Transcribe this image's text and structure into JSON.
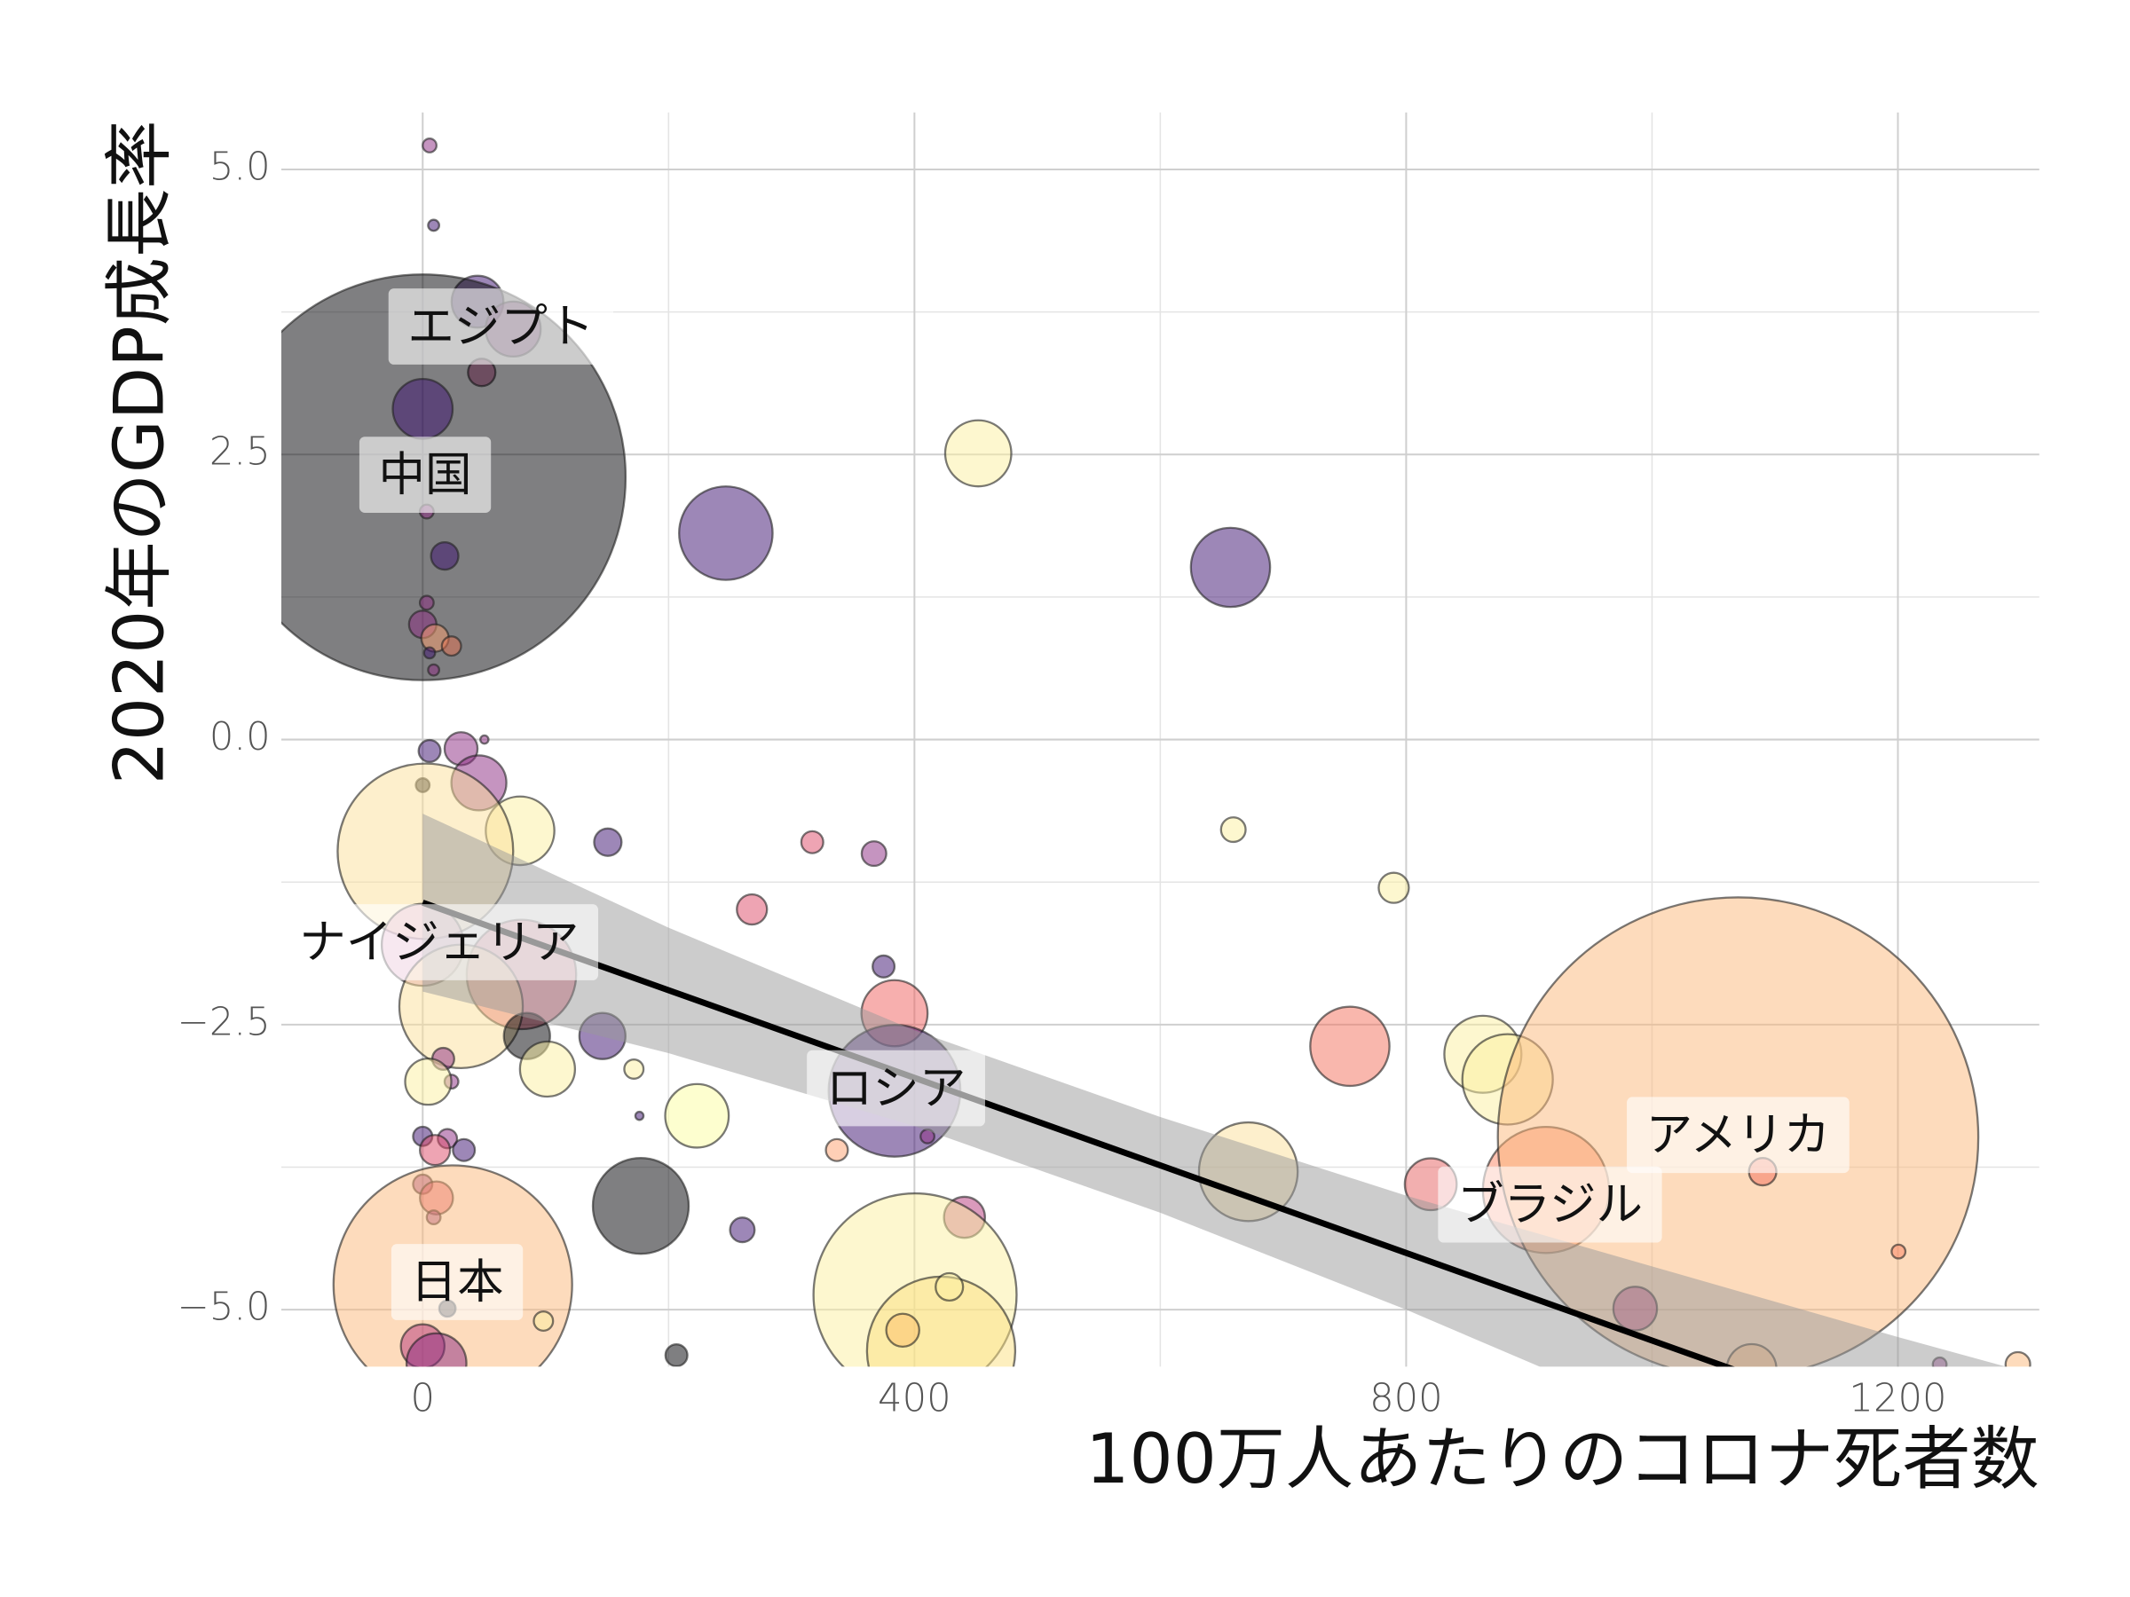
{
  "chart_data": {
    "type": "scatter",
    "xlabel": "100万人あたりのコロナ死者数",
    "ylabel": "2020年のGDP成長率",
    "xlim": [
      -115,
      1315
    ],
    "ylim": [
      -5.5,
      5.5
    ],
    "xticks": [
      0,
      400,
      800,
      1200
    ],
    "yticks": [
      {
        "value": -5,
        "label": "−5.0"
      },
      {
        "value": -2.5,
        "label": "−2.5"
      },
      {
        "value": 0,
        "label": "0.0"
      },
      {
        "value": 2.5,
        "label": "2.5"
      },
      {
        "value": 5,
        "label": "5.0"
      }
    ],
    "minor_xticks": [
      200,
      600,
      1000
    ],
    "minor_yticks": [
      -3.75,
      -1.25,
      1.25,
      3.75
    ],
    "grid": true,
    "alpha": 0.5,
    "x": [
      5.6,
      8.9,
      44.6,
      73.6,
      48,
      0,
      0,
      3.3,
      17.9,
      3.3,
      0,
      10,
      23.4,
      5.6,
      8.9,
      451.9,
      246.6,
      657.1,
      5.6,
      31.2,
      50.2,
      45.7,
      0,
      79.2,
      2.2,
      150.6,
      316.9,
      367.1,
      659.4,
      789.9,
      267.8,
      0,
      80.3,
      31.2,
      374.9,
      383.8,
      84.8,
      146.2,
      16.7,
      23.4,
      4.5,
      101.5,
      171.8,
      383.8,
      754.2,
      862.4,
      882.5,
      223.1,
      176.3,
      0,
      20.1,
      33.5,
      10,
      336.9,
      410.6,
      671.6,
      820,
      913.7,
      1070,
      1090,
      0,
      11.2,
      177.4,
      440.7,
      260,
      8.9,
      24.5,
      1200.5,
      986.3,
      400.5,
      421.7,
      428.4,
      390.5,
      20.1,
      98.2,
      0,
      11.2,
      206.4,
      1081,
      1234,
      1297.6
    ],
    "values": [
      5.21,
      4.51,
      3.84,
      3.6,
      3.22,
      2.3,
      2.9,
      2.0,
      1.61,
      1.2,
      1.01,
      0.89,
      0.82,
      0.76,
      0.61,
      2.51,
      1.81,
      1.51,
      -0.1,
      -0.08,
      0,
      -0.38,
      -0.4,
      -0.8,
      -0.98,
      -0.9,
      -0.9,
      -1.0,
      -0.79,
      -1.3,
      -1.49,
      -1.8,
      -2.06,
      -2.34,
      -1.99,
      -2.4,
      -2.6,
      -2.6,
      -2.8,
      -3.0,
      -3.0,
      -2.89,
      -2.89,
      -3.08,
      -2.69,
      -2.76,
      -2.98,
      -3.3,
      -3.3,
      -3.48,
      -3.5,
      -3.6,
      -3.6,
      -3.6,
      -3.48,
      -3.79,
      -3.9,
      -3.95,
      -3.49,
      -3.79,
      -3.9,
      -4.02,
      -4.09,
      -4.19,
      -4.3,
      -4.19,
      -4.78,
      -4.49,
      -4.99,
      -4.87,
      -5.36,
      -4.8,
      -5.18,
      -4.99,
      -5.1,
      -5.32,
      -5.47,
      -5.4,
      -5.52,
      -5.48,
      -5.48
    ],
    "sizes": [
      0.017,
      0.011,
      0.24,
      0.27,
      0.067,
      14.7,
      0.32,
      0.017,
      0.067,
      0.017,
      0.067,
      0.067,
      0.033,
      0.011,
      0.011,
      0.39,
      0.78,
      0.56,
      0.043,
      0.097,
      0.006,
      0.27,
      0.017,
      0.42,
      2.75,
      0.067,
      0.043,
      0.054,
      0.054,
      0.081,
      0.081,
      0.6,
      1.07,
      1.36,
      0.043,
      0.39,
      0.19,
      0.19,
      0.043,
      0.017,
      0.19,
      0.27,
      0.033,
      1.55,
      0.56,
      0.53,
      0.73,
      0.36,
      0.006,
      0.033,
      0.033,
      0.043,
      0.081,
      0.043,
      0.017,
      0.87,
      0.24,
      1.42,
      20.6,
      0.067,
      0.033,
      0.097,
      0.82,
      0.15,
      0.054,
      0.017,
      5.08,
      0.017,
      0.17,
      3.68,
      1.96,
      0.067,
      0.097,
      0.024,
      0.033,
      0.17,
      0.32,
      0.043,
      0.22,
      0.017,
      0.054
    ],
    "colors": [
      "#8c2981",
      "#3b0f70",
      "#3b0f70",
      "#8c2981",
      "#b5367a",
      "#000004",
      "#3b0f70",
      "#8c2981",
      "#3b0f70",
      "#8c2981",
      "#8c2981",
      "#fe9f6d",
      "#e8714f",
      "#3b0f70",
      "#8c2981",
      "#fcefa0",
      "#3b0f70",
      "#3b0f70",
      "#3b0f70",
      "#8c2981",
      "#8c2981",
      "#8c2981",
      "#000004",
      "#fcefa0",
      "#fcdf9a",
      "#3b0f70",
      "#de4968",
      "#8c2981",
      "#fcefa0",
      "#fcefa0",
      "#de4968",
      "#d58bb5",
      "#de4968",
      "#fcdf9a",
      "#3b0f70",
      "#f0605d",
      "#000004",
      "#3b0f70",
      "#8c2981",
      "#8c2981",
      "#fcefa0",
      "#fcefa0",
      "#fcefa0",
      "#3b0f70",
      "#f4705c",
      "#fcefa0",
      "#fcefa0",
      "#fcfd9f",
      "#3b0f70",
      "#3b0f70",
      "#8c2981",
      "#3b0f70",
      "#de4968",
      "#fe9f6d",
      "#8c2981",
      "#fcdf9a",
      "#e56060",
      "#fb8461",
      "#fcb77a",
      "#f4705c",
      "#8c2981",
      "#de4968",
      "#000004",
      "#b5367a",
      "#3b0f70",
      "#8c2981",
      "#fcb77a",
      "#fb8461",
      "#b5367a",
      "#fcefa0",
      "#fcdf80",
      "#fcefa0",
      "#fcc06a",
      "#000004",
      "#fcefa0",
      "#b5367a",
      "#8c2981",
      "#000004",
      "#fcb77a",
      "#8c2981",
      "#fcb77a"
    ],
    "fit": {
      "x": [
        0,
        1315
      ],
      "values": [
        -1.43,
        -6.48
      ]
    },
    "ci": {
      "x": [
        0,
        200,
        400,
        600,
        800,
        1000,
        1200,
        1315
      ],
      "upper": [
        -0.65,
        -1.65,
        -2.55,
        -3.31,
        -4.0,
        -4.62,
        -5.24,
        -5.58
      ],
      "lower": [
        -2.21,
        -2.75,
        -3.39,
        -4.15,
        -5.0,
        -5.92,
        -6.84,
        -7.38
      ]
    },
    "annotations": [
      {
        "text": "エジプト",
        "x": 63.6,
        "y": 3.6
      },
      {
        "text": "中国",
        "x": 2,
        "y": 2.3
      },
      {
        "text": "ナイジェリア",
        "x": 13.4,
        "y": -1.8
      },
      {
        "text": "ロシア",
        "x": 385,
        "y": -3.08
      },
      {
        "text": "日本",
        "x": 28,
        "y": -4.78
      },
      {
        "text": "アメリカ",
        "x": 1070,
        "y": -3.49
      },
      {
        "text": "ブラジル",
        "x": 917,
        "y": -4.1
      }
    ]
  }
}
